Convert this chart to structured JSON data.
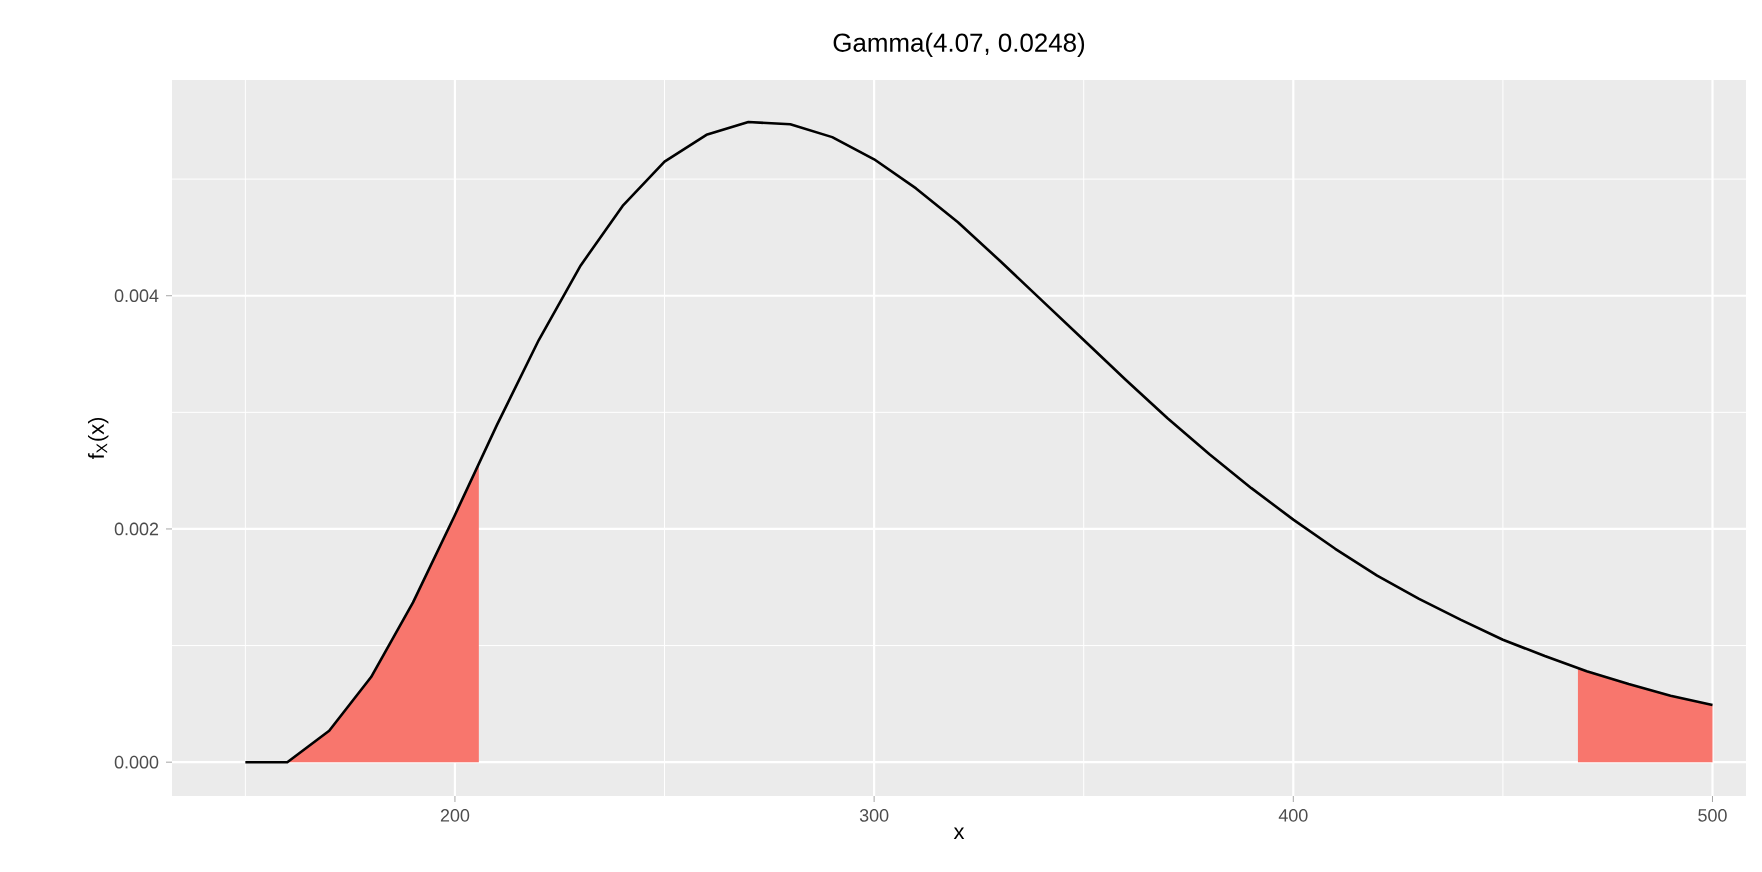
{
  "chart_data": {
    "type": "line",
    "title": "Gamma(4.07, 0.0248)",
    "xlabel": "x",
    "ylabel": "f$_{X}$(x)",
    "xlim": [
      132.5,
      508
    ],
    "ylim": [
      -0.00029,
      0.00585
    ],
    "xticks": [
      200,
      300,
      400,
      500
    ],
    "yticks": [
      {
        "value": 0,
        "label": "0.000"
      },
      {
        "value": 0.002,
        "label": "0.002"
      },
      {
        "value": 0.004,
        "label": "0.004"
      }
    ],
    "grid": true,
    "series": [
      {
        "type": "area",
        "color": "#f8766d",
        "x": [
          150,
          160,
          170,
          180,
          190,
          200,
          205.7
        ],
        "values": [
          0,
          0,
          0.00027,
          0.00073,
          0.00137,
          0.00212,
          0.00256
        ]
      },
      {
        "type": "area",
        "color": "#f8766d",
        "x": [
          467.9,
          470,
          480,
          490,
          500
        ],
        "values": [
          0.00081,
          0.00078,
          0.00067,
          0.00057,
          0.00049
        ]
      },
      {
        "color": "#000000",
        "x": [
          150,
          160,
          170,
          180,
          190,
          200,
          210,
          220,
          230,
          240,
          250,
          260,
          270,
          280,
          290,
          300,
          310,
          320,
          330,
          340,
          350,
          360,
          370,
          380,
          390,
          400,
          410,
          420,
          430,
          440,
          450,
          460,
          470,
          480,
          490,
          500
        ],
        "values": [
          0,
          0,
          0.00027,
          0.00073,
          0.00137,
          0.00212,
          0.00289,
          0.00362,
          0.00426,
          0.00477,
          0.00515,
          0.00538,
          0.00549,
          0.00547,
          0.00536,
          0.00517,
          0.00492,
          0.00463,
          0.0043,
          0.00396,
          0.00362,
          0.00328,
          0.00295,
          0.00264,
          0.00235,
          0.00208,
          0.00183,
          0.0016,
          0.0014,
          0.00122,
          0.00105,
          0.00091,
          0.00078,
          0.00067,
          0.00057,
          0.00049
        ]
      }
    ]
  }
}
